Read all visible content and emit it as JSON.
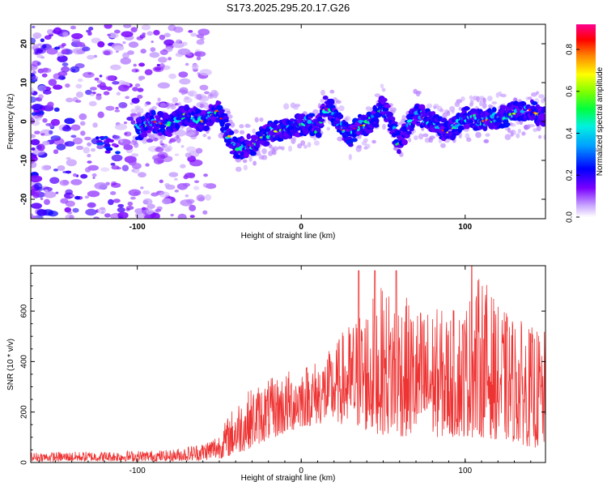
{
  "figure_title": "S173.2025.295.20.17.G26",
  "chart_data": [
    {
      "type": "heatmap",
      "title": "S173.2025.295.20.17.G26",
      "xlabel": "Height of straight line (km)",
      "ylabel": "Frequency (Hz)",
      "xlim": [
        -165,
        149
      ],
      "ylim": [
        -25,
        25
      ],
      "xticks": [
        -100,
        0,
        100
      ],
      "xtick_labels": [
        "-100",
        "0",
        "100"
      ],
      "yticks": [
        -20,
        -10,
        0,
        10,
        20
      ],
      "ytick_labels": [
        "-20",
        "-10",
        "0",
        "10",
        "20"
      ],
      "colorbar": {
        "label": "Normalized spectral amplitude",
        "range": [
          0.0,
          0.92
        ],
        "ticks": [
          0.0,
          0.2,
          0.4,
          0.6,
          0.8
        ],
        "tick_labels": [
          "0.0",
          "0.2",
          "0.4",
          "0.6",
          "0.8"
        ]
      },
      "ridge": {
        "description": "frequency of dominant band vs height",
        "x": [
          -100,
          -90,
          -80,
          -70,
          -60,
          -50,
          -45,
          -40,
          -30,
          -20,
          -10,
          0,
          5,
          10,
          15,
          20,
          25,
          30,
          35,
          40,
          45,
          50,
          55,
          60,
          65,
          70,
          80,
          90,
          100,
          110,
          120,
          130,
          140,
          148
        ],
        "y": [
          -2,
          0,
          -1,
          2,
          0,
          3,
          -3,
          -7,
          -6,
          -3,
          -2,
          -1,
          0,
          -2,
          4,
          2,
          -2,
          -4,
          -1,
          -1,
          1,
          4,
          0,
          -6,
          -1,
          2,
          0,
          -3,
          1,
          0,
          1,
          2,
          3,
          1
        ]
      }
    },
    {
      "type": "line",
      "xlabel": "Height of straight line (km)",
      "ylabel": "SNR (10 * v/v)",
      "xlim": [
        -165,
        149
      ],
      "ylim": [
        0,
        780
      ],
      "xticks": [
        -100,
        0,
        100
      ],
      "xtick_labels": [
        "-100",
        "0",
        "100"
      ],
      "yticks": [
        0,
        200,
        400,
        600
      ],
      "ytick_labels": [
        "0",
        "200",
        "400",
        "600"
      ],
      "series": [
        {
          "name": "SNR",
          "color": "#ee3333",
          "envelope_x": [
            -165,
            -120,
            -80,
            -60,
            -50,
            -40,
            -30,
            -20,
            -10,
            0,
            10,
            20,
            25,
            30,
            40,
            50,
            60,
            70,
            80,
            90,
            100,
            110,
            120,
            130,
            140,
            149
          ],
          "envelope_low": [
            5,
            5,
            5,
            8,
            15,
            30,
            60,
            90,
            110,
            140,
            150,
            160,
            150,
            130,
            120,
            110,
            100,
            100,
            100,
            100,
            100,
            100,
            90,
            80,
            60,
            50
          ],
          "envelope_high": [
            40,
            45,
            50,
            80,
            120,
            240,
            300,
            330,
            360,
            390,
            410,
            460,
            520,
            560,
            640,
            700,
            680,
            620,
            620,
            600,
            640,
            760,
            620,
            580,
            540,
            520
          ],
          "peak_x": [
            35,
            45,
            58,
            104
          ],
          "peak_y": [
            760,
            760,
            760,
            780
          ]
        }
      ]
    }
  ],
  "colors": {
    "line": "#ee3333",
    "colormap": [
      "#ffffff",
      "#7a00ff",
      "#0000ff",
      "#00e0ff",
      "#00ff00",
      "#ffff00",
      "#ff0000",
      "#ff00aa"
    ]
  }
}
